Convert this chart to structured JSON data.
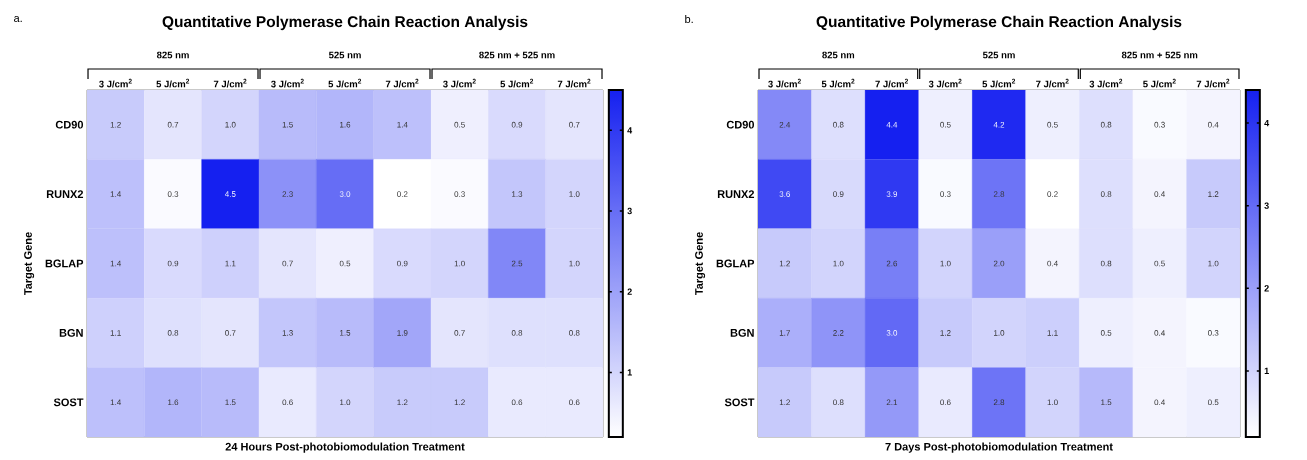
{
  "chart_data": [
    {
      "type": "heatmap",
      "title": "Quantitative Polymerase Chain Reaction Analysis",
      "xlabel": "24 Hours Post-photobiomodulation Treatment",
      "ylabel": "Target Gene",
      "categories": [
        "3 J/cm$^{2}$",
        "5 J/cm$^{2}$",
        "7 J/cm$^{2}$",
        "3 J/cm$^{2}$",
        "5 J/cm$^{2}$",
        "7 J/cm$^{2}$",
        "3 J/cm$^{2}$",
        "5 J/cm$^{2}$",
        "7 J/cm$^{2}$"
      ],
      "y_categories": [
        "CD90",
        "RUNX2",
        "BGLAP",
        "BGN",
        "SOST"
      ],
      "cells": [
        [
          1.2,
          0.7,
          1.0,
          1.5,
          1.6,
          1.4,
          0.5,
          0.9,
          0.7
        ],
        [
          1.4,
          0.3,
          4.5,
          2.3,
          3.0,
          0.2,
          0.3,
          1.3,
          1.0
        ],
        [
          1.4,
          0.9,
          1.1,
          0.7,
          0.5,
          0.9,
          1.0,
          2.5,
          1.0
        ],
        [
          1.1,
          0.8,
          0.7,
          1.3,
          1.5,
          1.9,
          0.7,
          0.8,
          0.8
        ],
        [
          1.4,
          1.6,
          1.5,
          0.6,
          1.0,
          1.2,
          1.2,
          0.6,
          0.6
        ]
      ],
      "cell_labels": [
        [
          "1.2",
          "0.7",
          "1.0",
          "1.5",
          "1.6",
          "1.4",
          "0.5",
          "0.9",
          "0.7"
        ],
        [
          "1.4",
          "0.3",
          "4.5",
          "2.3",
          "3.0",
          "0.2",
          "0.3",
          "1.3",
          "1.0"
        ],
        [
          "1.4",
          "0.9",
          "1.1",
          "0.7",
          "0.5",
          "0.9",
          "1.0",
          "2.5",
          "1.0"
        ],
        [
          "1.1",
          "0.8",
          "0.7",
          "1.3",
          "1.5",
          "1.9",
          "0.7",
          "0.8",
          "0.8"
        ],
        [
          "1.4",
          "1.6",
          "1.5",
          "0.6",
          "1.0",
          "1.2",
          "1.2",
          "0.6",
          "0.6"
        ]
      ],
      "clim": [
        0.2,
        4.5
      ],
      "cticks": [
        1,
        2,
        3,
        4
      ],
      "annotations": [
        "a.",
        "825 nm",
        "525 nm",
        "825 nm + 525 nm"
      ]
    },
    {
      "type": "heatmap",
      "title": "Quantitative Polymerase Chain Reaction Analysis",
      "xlabel": "7 Days Post-photobiomodulation Treatment",
      "ylabel": "Target Gene",
      "categories": [
        "3 J/cm$^{2}$",
        "5 J/cm$^{2}$",
        "7 J/cm$^{2}$",
        "3 J/cm$^{2}$",
        "5 J/cm$^{2}$",
        "7 J/cm$^{2}$",
        "3 J/cm$^{2}$",
        "5 J/cm$^{2}$",
        "7 J/cm$^{2}$"
      ],
      "y_categories": [
        "CD90",
        "RUNX2",
        "BGLAP",
        "BGN",
        "SOST"
      ],
      "cells": [
        [
          2.4,
          0.8,
          4.4,
          0.5,
          4.2,
          0.5,
          0.8,
          0.3,
          0.4
        ],
        [
          3.6,
          0.9,
          3.9,
          0.3,
          2.8,
          0.2,
          0.8,
          0.4,
          1.2
        ],
        [
          1.2,
          1.0,
          2.6,
          1.0,
          2.0,
          0.4,
          0.8,
          0.5,
          1.0
        ],
        [
          1.7,
          2.2,
          3.0,
          1.2,
          1.0,
          1.1,
          0.5,
          0.4,
          0.3
        ],
        [
          1.2,
          0.8,
          2.1,
          0.6,
          2.8,
          1.0,
          1.5,
          0.4,
          0.5
        ]
      ],
      "cell_labels": [
        [
          "2.4",
          "0.8",
          "4.4",
          "0.5",
          "4.2",
          "0.5",
          "0.8",
          "0.3",
          "0.4"
        ],
        [
          "3.6",
          "0.9",
          "3.9",
          "0.3",
          "2.8",
          "0.2",
          "0.8",
          "0.4",
          "1.2"
        ],
        [
          "1.2",
          "1.0",
          "2.6",
          "1.0",
          "2.0",
          "0.4",
          "0.8",
          "0.5",
          "1.0"
        ],
        [
          "1.7",
          "2.2",
          "3.0",
          "1.2",
          "1.0",
          "1.1",
          "0.5",
          "0.4",
          "0.3"
        ],
        [
          "1.2",
          "0.8",
          "2.1",
          "0.6",
          "2.8",
          "1.0",
          "1.5",
          "0.4",
          "0.5"
        ]
      ],
      "clim": [
        0.2,
        4.4
      ],
      "cticks": [
        1,
        2,
        3,
        4
      ],
      "annotations": [
        "b.",
        "825 nm",
        "525 nm",
        "825 nm + 525 nm"
      ]
    }
  ]
}
